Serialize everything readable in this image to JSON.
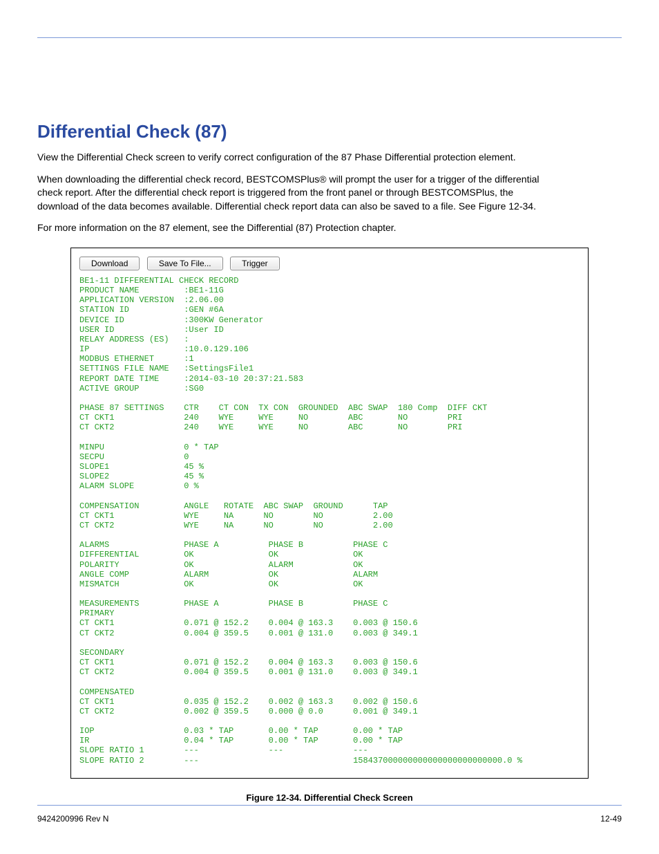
{
  "page": {
    "footer_left": "9424200996 Rev N",
    "footer_right": "12-49",
    "top_rule_color": "#7c9ad8"
  },
  "heading": "Differential Check (87)",
  "paragraphs": {
    "p1": "View the Differential Check screen to verify correct configuration of the 87 Phase Differential protection element.",
    "p2": "When downloading the differential check record, BESTCOMSPlus® will prompt the user for a trigger of the differential check report. After the differential check report is triggered from the front panel or through BESTCOMSPlus, the download of the data becomes available. Differential check report data can also be saved to a file. See Figure 12-34.",
    "p3": "For more information on the 87 element, see the Differential (87) Protection chapter."
  },
  "buttons": {
    "download": "Download",
    "save": "Save To File...",
    "trigger": "Trigger"
  },
  "figure_caption": "Figure 12-34. Differential Check Screen",
  "terminal": {
    "color": "#2aa02a",
    "font": "Courier New",
    "text": "BE1-11 DIFFERENTIAL CHECK RECORD\nPRODUCT NAME         :BE1-11G\nAPPLICATION VERSION  :2.06.00\nSTATION ID           :GEN #6A\nDEVICE ID            :300KW Generator\nUSER ID              :User ID\nRELAY ADDRESS (ES)   :\nIP                   :10.0.129.106\nMODBUS ETHERNET      :1\nSETTINGS FILE NAME   :SettingsFile1\nREPORT DATE TIME     :2014-03-10 20:37:21.583\nACTIVE GROUP         :SG0\n\nPHASE 87 SETTINGS    CTR    CT CON  TX CON  GROUNDED  ABC SWAP  180 Comp  DIFF CKT\nCT CKT1              240    WYE     WYE     NO        ABC       NO        PRI\nCT CKT2              240    WYE     WYE     NO        ABC       NO        PRI\n\nMINPU                0 * TAP\nSECPU                0\nSLOPE1               45 %\nSLOPE2               45 %\nALARM SLOPE          0 %\n\nCOMPENSATION         ANGLE   ROTATE  ABC SWAP  GROUND      TAP\nCT CKT1              WYE     NA      NO        NO          2.00\nCT CKT2              WYE     NA      NO        NO          2.00\n\nALARMS               PHASE A          PHASE B          PHASE C\nDIFFERENTIAL         OK               OK               OK\nPOLARITY             OK               ALARM            OK\nANGLE COMP           ALARM            OK               ALARM\nMISMATCH             OK               OK               OK\n\nMEASUREMENTS         PHASE A          PHASE B          PHASE C\nPRIMARY\nCT CKT1              0.071 @ 152.2    0.004 @ 163.3    0.003 @ 150.6\nCT CKT2              0.004 @ 359.5    0.001 @ 131.0    0.003 @ 349.1\n\nSECONDARY\nCT CKT1              0.071 @ 152.2    0.004 @ 163.3    0.003 @ 150.6\nCT CKT2              0.004 @ 359.5    0.001 @ 131.0    0.003 @ 349.1\n\nCOMPENSATED\nCT CKT1              0.035 @ 152.2    0.002 @ 163.3    0.002 @ 150.6\nCT CKT2              0.002 @ 359.5    0.000 @ 0.0      0.001 @ 349.1\n\nIOP                  0.03 * TAP       0.00 * TAP       0.00 * TAP\nIR                   0.04 * TAP       0.00 * TAP       0.00 * TAP\nSLOPE RATIO 1        ---              ---              ---\nSLOPE RATIO 2        ---                               158437000000000000000000000000.0 %"
  }
}
